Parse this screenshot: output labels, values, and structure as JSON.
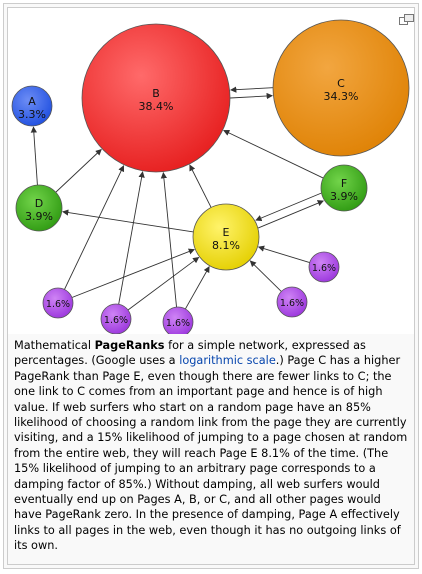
{
  "diagram": {
    "nodes": [
      {
        "id": "A",
        "value": "3.3%",
        "color": "#1f4fe0"
      },
      {
        "id": "B",
        "value": "38.4%",
        "color": "#ee2222"
      },
      {
        "id": "C",
        "value": "34.3%",
        "color": "#e88a0a"
      },
      {
        "id": "D",
        "value": "3.9%",
        "color": "#3aa61a"
      },
      {
        "id": "E",
        "value": "8.1%",
        "color": "#e8d400"
      },
      {
        "id": "F",
        "value": "3.9%",
        "color": "#3aa61a"
      },
      {
        "value": "1.6%",
        "color": "#a23ee0"
      },
      {
        "value": "1.6%",
        "color": "#a23ee0"
      },
      {
        "value": "1.6%",
        "color": "#a23ee0"
      },
      {
        "value": "1.6%",
        "color": "#a23ee0"
      },
      {
        "value": "1.6%",
        "color": "#a23ee0"
      }
    ],
    "edges": [
      [
        "B",
        "C"
      ],
      [
        "C",
        "B"
      ],
      [
        "D",
        "A"
      ],
      [
        "D",
        "B"
      ],
      [
        "E",
        "B"
      ],
      [
        "E",
        "D"
      ],
      [
        "E",
        "F"
      ],
      [
        "F",
        "B"
      ],
      [
        "F",
        "E"
      ]
    ]
  },
  "caption": {
    "part1": "Mathematical ",
    "bold": "PageRanks",
    "part2": " for a simple network, expressed as percentages. (Google uses a ",
    "link_text": "logarithmic scale",
    "part3": ".) Page C has a higher PageRank than Page E, even though there are fewer links to C; the one link to C comes from an important page and hence is of high value. If web surfers who start on a random page have an 85% likelihood of choosing a random link from the page they are currently visiting, and a 15% likelihood of jumping to a page chosen at random from the entire web, they will reach Page E 8.1% of the time. (The 15% likelihood of jumping to an arbitrary page corresponds to a damping factor of 85%.) Without damping, all web surfers would eventually end up on Pages A, B, or C, and all other pages would have PageRank zero. In the presence of damping, Page A effectively links to all pages in the web, even though it has no outgoing links of its own."
  },
  "magnify_icon": "enlarge-icon"
}
